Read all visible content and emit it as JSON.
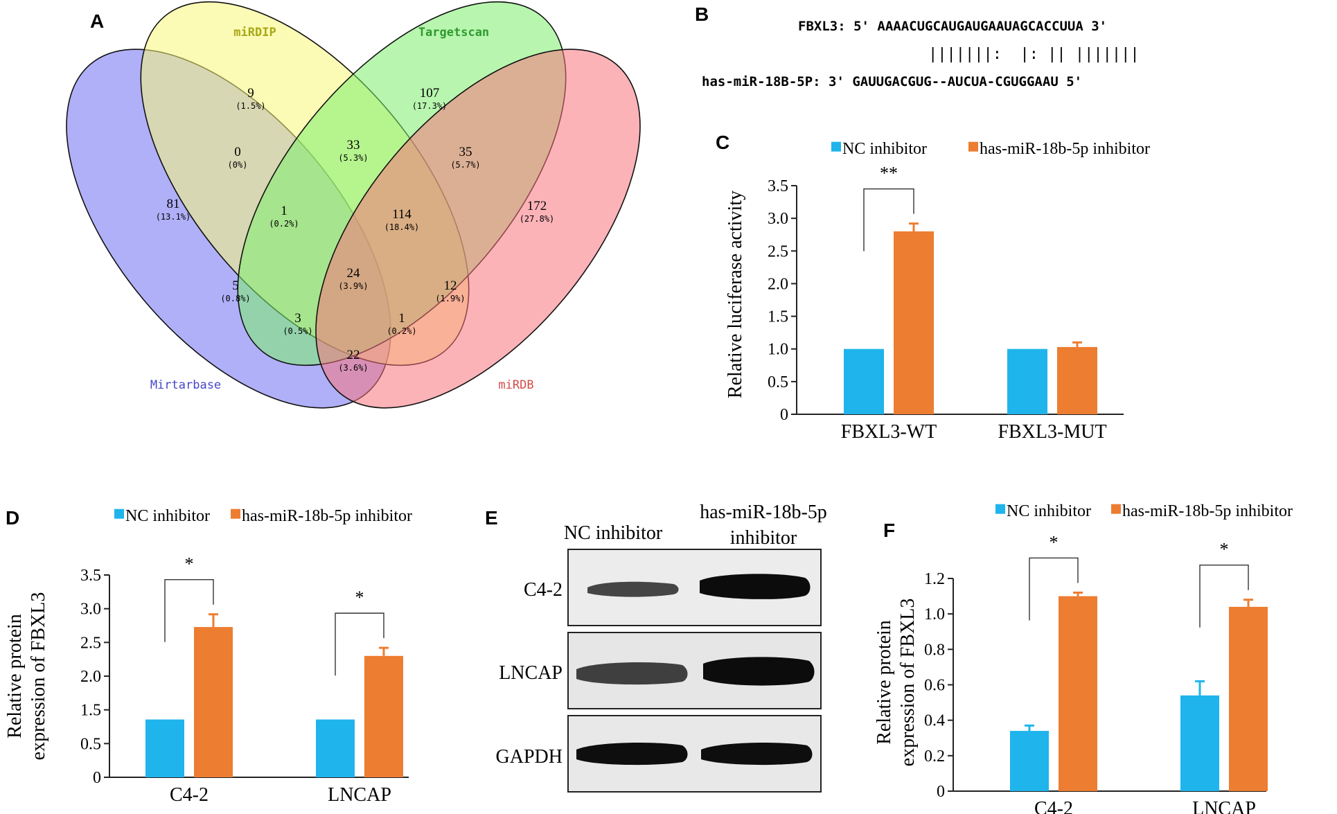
{
  "panel_labels": {
    "a": "A",
    "b": "B",
    "c": "C",
    "d": "D",
    "e": "E",
    "f": "F"
  },
  "colors": {
    "nc": "#1fb4ec",
    "inh": "#ed7d31"
  },
  "venn": {
    "sets": {
      "mirdip": "miRDIP",
      "targetscan": "Targetscan",
      "mirtarbase": "Mirtarbase",
      "mirdb": "miRDB"
    },
    "set_colors": {
      "mirtarbase": "#6f6ff2",
      "mirdip": "#f8f87a",
      "targetscan": "#7def6d",
      "mirdb": "#f7757e"
    },
    "regions": [
      {
        "count": "9",
        "pct": "(1.5%)"
      },
      {
        "count": "107",
        "pct": "(17.3%)"
      },
      {
        "count": "0",
        "pct": "(0%)"
      },
      {
        "count": "33",
        "pct": "(5.3%)"
      },
      {
        "count": "35",
        "pct": "(5.7%)"
      },
      {
        "count": "81",
        "pct": "(13.1%)"
      },
      {
        "count": "1",
        "pct": "(0.2%)"
      },
      {
        "count": "114",
        "pct": "(18.4%)"
      },
      {
        "count": "172",
        "pct": "(27.8%)"
      },
      {
        "count": "24",
        "pct": "(3.9%)"
      },
      {
        "count": "5",
        "pct": "(0.8%)"
      },
      {
        "count": "12",
        "pct": "(1.9%)"
      },
      {
        "count": "3",
        "pct": "(0.5%)"
      },
      {
        "count": "1",
        "pct": "(0.2%)"
      },
      {
        "count": "22",
        "pct": "(3.6%)"
      }
    ]
  },
  "alignment": {
    "line1": "FBXL3: 5' AAAACUGCAUGAUGAAUAGCACCUUA 3'",
    "pairs": "|||||||:  |: || |||||||",
    "line2": "has-miR-18B-5P: 3' GAUUGACGUG--AUCUA-CGUGGAAU 5'"
  },
  "blot": {
    "col_labels": [
      "NC inhibitor",
      "has-miR-18b-5p",
      "inhibitor"
    ],
    "row_labels": [
      "C4-2",
      "LNCAP",
      "GAPDH"
    ]
  },
  "chart_data": [
    {
      "type": "bar",
      "panel": "C",
      "categories": [
        "FBXL3-WT",
        "FBXL3-MUT"
      ],
      "series": [
        {
          "name": "NC inhibitor",
          "values": [
            1.0,
            1.0
          ],
          "errors": [
            0.0,
            0.0
          ]
        },
        {
          "name": "has-miR-18b-5p inhibitor",
          "values": [
            2.8,
            1.03
          ],
          "errors": [
            0.12,
            0.07
          ]
        }
      ],
      "ylabel": "Relative luciferase activity",
      "ylim": [
        0,
        3.5
      ],
      "yticks": [
        "0",
        "0.5",
        "1.0",
        "1.5",
        "2.0",
        "2.5",
        "3.0",
        "3.5"
      ],
      "significance": [
        {
          "category": 0,
          "label": "**"
        }
      ],
      "legend": "top"
    },
    {
      "type": "bar",
      "panel": "D",
      "categories": [
        "C4-2",
        "LNCAP"
      ],
      "series": [
        {
          "name": "NC inhibitor",
          "values": [
            1.0,
            1.0
          ],
          "errors": [
            0.0,
            0.0
          ]
        },
        {
          "name": "has-miR-18b-5p inhibitor",
          "values": [
            2.6,
            2.1
          ],
          "errors": [
            0.22,
            0.14
          ]
        }
      ],
      "ylabel_lines": [
        "Relative protein",
        "expression of FBXL3"
      ],
      "ylim": [
        0,
        3.5
      ],
      "yticks": [
        "0",
        "0.5",
        "1.5",
        "2.0",
        "2.5",
        "3.0",
        "3.5"
      ],
      "significance": [
        {
          "category": 0,
          "label": "*"
        },
        {
          "category": 1,
          "label": "*"
        }
      ],
      "legend": "top"
    },
    {
      "type": "bar",
      "panel": "F",
      "categories": [
        "C4-2",
        "LNCAP"
      ],
      "series": [
        {
          "name": "NC inhibitor",
          "values": [
            0.34,
            0.54
          ],
          "errors": [
            0.03,
            0.08
          ]
        },
        {
          "name": "has-miR-18b-5p inhibitor",
          "values": [
            1.1,
            1.04
          ],
          "errors": [
            0.02,
            0.04
          ]
        }
      ],
      "ylabel_lines": [
        "Relative protein",
        "expression of FBXL3"
      ],
      "ylim": [
        0,
        1.2
      ],
      "yticks": [
        "0",
        "0.2",
        "0.4",
        "0.6",
        "0.8",
        "1.0",
        "1.2"
      ],
      "significance": [
        {
          "category": 0,
          "label": "*"
        },
        {
          "category": 1,
          "label": "*"
        }
      ],
      "legend": "top"
    }
  ]
}
